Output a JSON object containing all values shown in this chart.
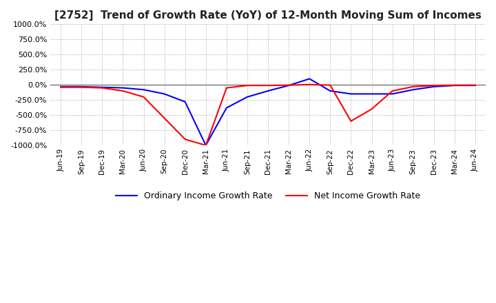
{
  "title": "[2752]  Trend of Growth Rate (YoY) of 12-Month Moving Sum of Incomes",
  "title_fontsize": 11,
  "ylim": [
    -1000,
    1000
  ],
  "yticks": [
    -1000,
    -750,
    -500,
    -250,
    0,
    250,
    500,
    750,
    1000
  ],
  "yticklabels": [
    "-1000.0%",
    "-750.0%",
    "-500.0%",
    "-250.0%",
    "0.0%",
    "250.0%",
    "500.0%",
    "750.0%",
    "1000.0%"
  ],
  "background_color": "#ffffff",
  "grid_color": "#999999",
  "ordinary_color": "#0000ff",
  "net_color": "#ff0000",
  "legend_labels": [
    "Ordinary Income Growth Rate",
    "Net Income Growth Rate"
  ],
  "x_labels": [
    "Jun-19",
    "Sep-19",
    "Dec-19",
    "Mar-20",
    "Jun-20",
    "Sep-20",
    "Dec-20",
    "Mar-21",
    "Jun-21",
    "Sep-21",
    "Dec-21",
    "Mar-22",
    "Jun-22",
    "Sep-22",
    "Dec-22",
    "Mar-23",
    "Jun-23",
    "Sep-23",
    "Dec-23",
    "Mar-24",
    "Jun-24"
  ],
  "ordinary_income_growth": [
    -30,
    -30,
    -40,
    -50,
    -80,
    -150,
    -280,
    -1000,
    -380,
    -200,
    -100,
    -10,
    100,
    -100,
    -150,
    -150,
    -150,
    -80,
    -30,
    -10,
    -10
  ],
  "net_income_growth": [
    -40,
    -40,
    -50,
    -100,
    -200,
    -550,
    -900,
    -1000,
    -50,
    -10,
    -10,
    -5,
    5,
    -5,
    -600,
    -400,
    -100,
    -30,
    -10,
    -5,
    -5
  ]
}
